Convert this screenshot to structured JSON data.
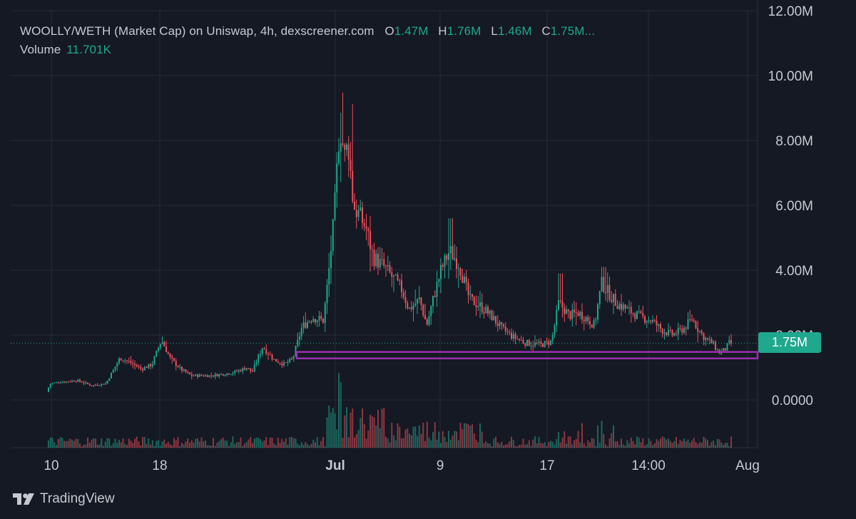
{
  "legend": {
    "title": "WOOLLY/WETH (Market Cap) on Uniswap, 4h, dexscreener.com",
    "o_key": "O",
    "o_val": "1.47M",
    "h_key": "H",
    "h_val": "1.76M",
    "l_key": "L",
    "l_val": "1.46M",
    "c_key": "C",
    "c_val": "1.75M...",
    "volume_key": "Volume",
    "volume_val": "11.701K"
  },
  "price_tag": "1.75M",
  "footer": {
    "brand": "TradingView",
    "logo_icon": "tradingview-logo-icon"
  },
  "colors": {
    "background": "#151923",
    "up": "#1fa88e",
    "down": "#ee4f5c",
    "grid": "#262b37",
    "axis_text": "#c6c9d1",
    "support_box": "#9b2fae"
  },
  "chart_data": {
    "type": "candlestick",
    "title": "WOOLLY/WETH (Market Cap) on Uniswap, 4h, dexscreener.com",
    "interval": "4h",
    "y_ticks": [
      "12.00M",
      "10.00M",
      "8.00M",
      "6.00M",
      "4.00M",
      "2.00M",
      "0.0000"
    ],
    "y_tick_values": [
      12000000,
      10000000,
      8000000,
      6000000,
      4000000,
      2000000,
      0
    ],
    "x_ticks": [
      "10",
      "18",
      "Jul",
      "9",
      "17",
      "14:00",
      "Aug"
    ],
    "ylim": [
      0,
      12000000
    ],
    "last_close": 1750000,
    "grid": true,
    "support_zone": {
      "low": 1280000,
      "high": 1480000
    },
    "key_points": [
      {
        "x": "10",
        "close": 250000
      },
      {
        "x": "18",
        "close": 2100000
      },
      {
        "x": "28 Jun",
        "close": 1250000
      },
      {
        "x": "30 Jun",
        "close": 2500000
      },
      {
        "x": "2 Jul",
        "close": 9000000
      },
      {
        "x": "4 Jul",
        "close": 5000000
      },
      {
        "x": "9",
        "close": 4600000
      },
      {
        "x": "15 Jul",
        "close": 1500000
      },
      {
        "x": "17",
        "close": 3000000
      },
      {
        "x": "20 Jul",
        "close": 3600000
      },
      {
        "x": "25 Jul",
        "close": 2000000
      },
      {
        "x": "27 Jul",
        "close": 2500000
      },
      {
        "x": "30 Jul",
        "close": 1750000
      }
    ],
    "series": [
      {
        "name": "Market Cap",
        "ohlc_last": {
          "open": 1470000,
          "high": 1760000,
          "low": 1460000,
          "close": 1750000
        }
      },
      {
        "name": "Volume",
        "last": 11701
      }
    ]
  }
}
